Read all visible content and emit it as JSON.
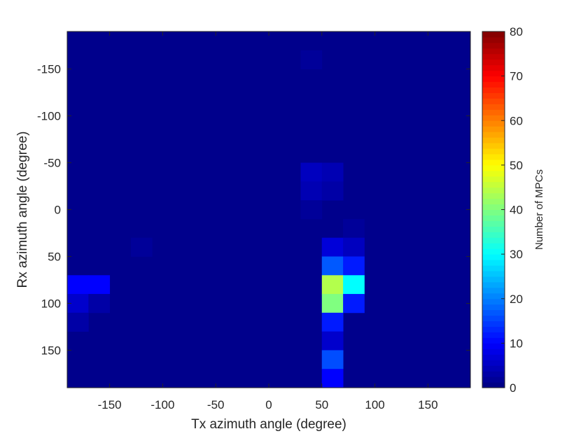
{
  "chart_data": {
    "type": "heatmap",
    "xlabel": "Tx azimuth angle (degree)",
    "ylabel": "Rx azimuth angle (degree)",
    "colorbar_label": "Number of MPCs",
    "xlim": [
      -190,
      190
    ],
    "ylim": [
      -190,
      190
    ],
    "y_direction": "reversed",
    "x_ticks": [
      -150,
      -100,
      -50,
      0,
      50,
      100,
      150
    ],
    "y_ticks": [
      -150,
      -100,
      -50,
      0,
      50,
      100,
      150
    ],
    "x_tick_labels": [
      "-150",
      "-100",
      "-50",
      "0",
      "50",
      "100",
      "150"
    ],
    "y_tick_labels": [
      "-150",
      "-100",
      "-50",
      "0",
      "50",
      "100",
      "150"
    ],
    "colorbar_ticks": [
      0,
      10,
      20,
      30,
      40,
      50,
      60,
      70,
      80
    ],
    "colorbar_tick_labels": [
      "0",
      "10",
      "20",
      "30",
      "40",
      "50",
      "60",
      "70",
      "80"
    ],
    "clim": [
      0,
      80
    ],
    "colormap": "jet",
    "background_value": 1,
    "cell_size_deg": 20,
    "cells": [
      {
        "x": 40,
        "y": -160,
        "value": 2
      },
      {
        "x": 40,
        "y": -40,
        "value": 5
      },
      {
        "x": 60,
        "y": -40,
        "value": 4
      },
      {
        "x": 40,
        "y": -20,
        "value": 4
      },
      {
        "x": 60,
        "y": -20,
        "value": 3
      },
      {
        "x": 40,
        "y": 0,
        "value": 2
      },
      {
        "x": 80,
        "y": 20,
        "value": 2
      },
      {
        "x": -120,
        "y": 40,
        "value": 2
      },
      {
        "x": 60,
        "y": 40,
        "value": 7
      },
      {
        "x": 80,
        "y": 40,
        "value": 5
      },
      {
        "x": 60,
        "y": 60,
        "value": 17
      },
      {
        "x": 80,
        "y": 60,
        "value": 12
      },
      {
        "x": -180,
        "y": 80,
        "value": 10
      },
      {
        "x": -160,
        "y": 80,
        "value": 10
      },
      {
        "x": 60,
        "y": 80,
        "value": 44
      },
      {
        "x": 80,
        "y": 80,
        "value": 30
      },
      {
        "x": -180,
        "y": 100,
        "value": 6
      },
      {
        "x": -160,
        "y": 100,
        "value": 3
      },
      {
        "x": 60,
        "y": 100,
        "value": 40
      },
      {
        "x": 80,
        "y": 100,
        "value": 12
      },
      {
        "x": -180,
        "y": 120,
        "value": 3
      },
      {
        "x": 60,
        "y": 120,
        "value": 12
      },
      {
        "x": 60,
        "y": 140,
        "value": 6
      },
      {
        "x": 60,
        "y": 160,
        "value": 16
      },
      {
        "x": 60,
        "y": 180,
        "value": 10
      }
    ]
  }
}
